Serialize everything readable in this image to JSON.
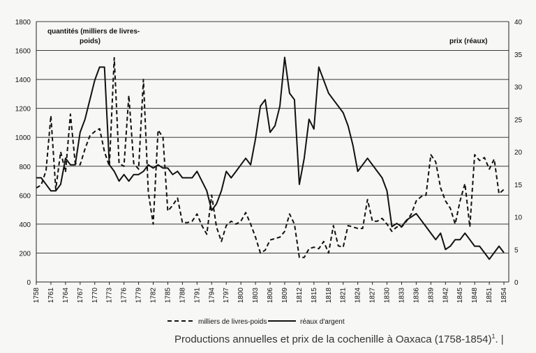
{
  "chart_data": {
    "type": "line",
    "title": "Productions annuelles et prix de la cochenille à Oaxaca (1758-1854)",
    "y_left_label_line1": "quantités  (milliers de livres-",
    "y_left_label_line2": "poids)",
    "y_right_label": "prix (réaux)",
    "y_left_range": [
      0,
      1800
    ],
    "y_left_ticks": [
      0,
      200,
      400,
      600,
      800,
      1000,
      1200,
      1400,
      1600,
      1800
    ],
    "y_right_range": [
      0,
      40
    ],
    "y_right_ticks": [
      0,
      5,
      10,
      15,
      20,
      25,
      30,
      35,
      40
    ],
    "x_range": [
      1758,
      1855
    ],
    "x_ticks": [
      1758,
      1761,
      1764,
      1767,
      1770,
      1773,
      1776,
      1779,
      1782,
      1785,
      1788,
      1791,
      1794,
      1797,
      1800,
      1803,
      1806,
      1809,
      1812,
      1815,
      1818,
      1821,
      1824,
      1827,
      1830,
      1833,
      1836,
      1839,
      1842,
      1845,
      1848,
      1851,
      1854
    ],
    "grid": true,
    "series": [
      {
        "name": "milliers de livres-poids",
        "axis": "left",
        "style": "dashed",
        "x": [
          1758,
          1759,
          1760,
          1761,
          1762,
          1763,
          1764,
          1765,
          1766,
          1767,
          1768,
          1769,
          1770,
          1771,
          1772,
          1773,
          1774,
          1775,
          1776,
          1777,
          1778,
          1779,
          1780,
          1781,
          1782,
          1783,
          1784,
          1785,
          1786,
          1787,
          1788,
          1789,
          1790,
          1791,
          1792,
          1793,
          1794,
          1795,
          1796,
          1797,
          1798,
          1799,
          1800,
          1801,
          1802,
          1803,
          1804,
          1805,
          1806,
          1807,
          1808,
          1809,
          1810,
          1811,
          1812,
          1813,
          1814,
          1815,
          1816,
          1817,
          1818,
          1819,
          1820,
          1821,
          1822,
          1823,
          1824,
          1825,
          1826,
          1827,
          1828,
          1829,
          1830,
          1831,
          1832,
          1833,
          1834,
          1835,
          1836,
          1837,
          1838,
          1839,
          1840,
          1841,
          1842,
          1843,
          1844,
          1845,
          1846,
          1847,
          1848,
          1849,
          1850,
          1851,
          1852,
          1853,
          1854
        ],
        "values": [
          650,
          670,
          770,
          1150,
          640,
          900,
          760,
          1160,
          820,
          810,
          920,
          1010,
          1040,
          1060,
          900,
          800,
          1550,
          820,
          800,
          1290,
          820,
          780,
          1400,
          620,
          400,
          1050,
          1000,
          490,
          530,
          580,
          410,
          410,
          420,
          470,
          390,
          330,
          600,
          380,
          280,
          390,
          420,
          400,
          420,
          480,
          400,
          310,
          200,
          220,
          290,
          300,
          310,
          350,
          470,
          400,
          170,
          170,
          230,
          240,
          230,
          280,
          200,
          390,
          250,
          240,
          390,
          380,
          370,
          370,
          570,
          420,
          420,
          440,
          400,
          350,
          380,
          380,
          420,
          470,
          560,
          590,
          600,
          880,
          830,
          650,
          560,
          510,
          400,
          560,
          680,
          380,
          880,
          840,
          860,
          780,
          850,
          610,
          640
        ]
      },
      {
        "name": "réaux d'argent",
        "axis": "right",
        "style": "solid",
        "x": [
          1758,
          1759,
          1760,
          1761,
          1762,
          1763,
          1764,
          1765,
          1766,
          1767,
          1768,
          1769,
          1770,
          1771,
          1772,
          1773,
          1774,
          1775,
          1776,
          1777,
          1778,
          1779,
          1780,
          1781,
          1782,
          1783,
          1784,
          1785,
          1786,
          1787,
          1788,
          1789,
          1790,
          1791,
          1792,
          1793,
          1794,
          1795,
          1796,
          1797,
          1798,
          1799,
          1800,
          1801,
          1802,
          1803,
          1804,
          1805,
          1806,
          1807,
          1808,
          1809,
          1810,
          1811,
          1812,
          1813,
          1814,
          1815,
          1816,
          1817,
          1818,
          1819,
          1820,
          1821,
          1822,
          1823,
          1824,
          1825,
          1826,
          1827,
          1828,
          1829,
          1830,
          1831,
          1832,
          1833,
          1834,
          1835,
          1836,
          1837,
          1838,
          1839,
          1840,
          1841,
          1842,
          1843,
          1844,
          1845,
          1846,
          1847,
          1848,
          1849,
          1850,
          1851,
          1852,
          1853,
          1854
        ],
        "values": [
          16,
          16,
          15,
          14,
          14,
          15,
          19,
          18,
          18,
          23,
          25,
          28,
          31,
          33,
          33,
          18,
          17,
          15.5,
          16.5,
          15.5,
          16.5,
          16.5,
          17,
          18,
          17.5,
          18,
          17.5,
          17.5,
          16.5,
          17,
          16,
          16,
          16,
          17,
          15.5,
          14,
          11,
          12,
          14,
          17,
          16,
          17,
          18,
          19,
          18,
          22,
          27,
          28,
          23,
          24,
          27,
          34.5,
          29,
          28,
          15,
          19,
          25,
          23.5,
          33,
          31,
          29,
          28,
          27,
          26,
          24,
          21,
          17,
          18,
          19,
          18,
          17,
          16,
          14,
          8.5,
          9,
          8.5,
          9.5,
          10,
          10.5,
          9.5,
          8.5,
          7.5,
          6.5,
          7.5,
          5,
          5.5,
          6.5,
          6.5,
          7.5,
          6.5,
          5.5,
          5.5,
          4.5,
          3.5,
          4.5,
          5.5,
          4.5
        ]
      }
    ]
  },
  "caption_text": "Productions annuelles et prix de la cochenille à Oaxaca (1758-1854)",
  "caption_sup": "1",
  "caption_tail": ".  |"
}
